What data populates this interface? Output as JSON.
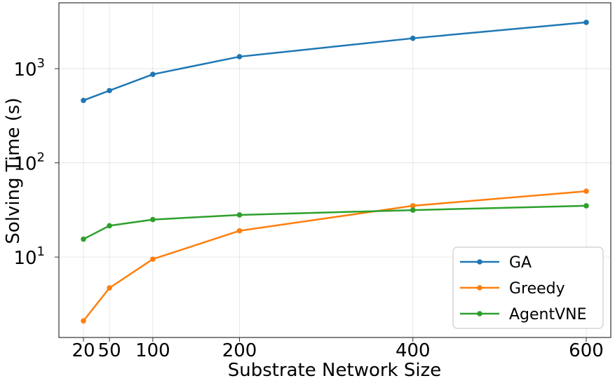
{
  "chart_data": {
    "type": "line",
    "xlabel": "Substrate Network Size",
    "ylabel": "Solving Time (s)",
    "x": [
      20,
      50,
      100,
      200,
      400,
      600
    ],
    "xticks": [
      "20",
      "50",
      "100",
      "200",
      "400",
      "600"
    ],
    "yscale": "log",
    "ylim": [
      1.4,
      5000
    ],
    "yticks": [
      {
        "value": 10,
        "base": "10",
        "exp": "1"
      },
      {
        "value": 100,
        "base": "10",
        "exp": "2"
      },
      {
        "value": 1000,
        "base": "10",
        "exp": "3"
      }
    ],
    "grid": true,
    "legend_position": "bottom-right",
    "series": [
      {
        "name": "GA",
        "color": "#1f77b4",
        "values": [
          460,
          585,
          870,
          1340,
          2100,
          3100
        ]
      },
      {
        "name": "Greedy",
        "color": "#ff7f0e",
        "values": [
          2.1,
          4.7,
          9.5,
          19,
          35,
          50
        ]
      },
      {
        "name": "AgentVNE",
        "color": "#2ca02c",
        "values": [
          15.5,
          21.5,
          25,
          28,
          31.5,
          35
        ]
      }
    ]
  }
}
